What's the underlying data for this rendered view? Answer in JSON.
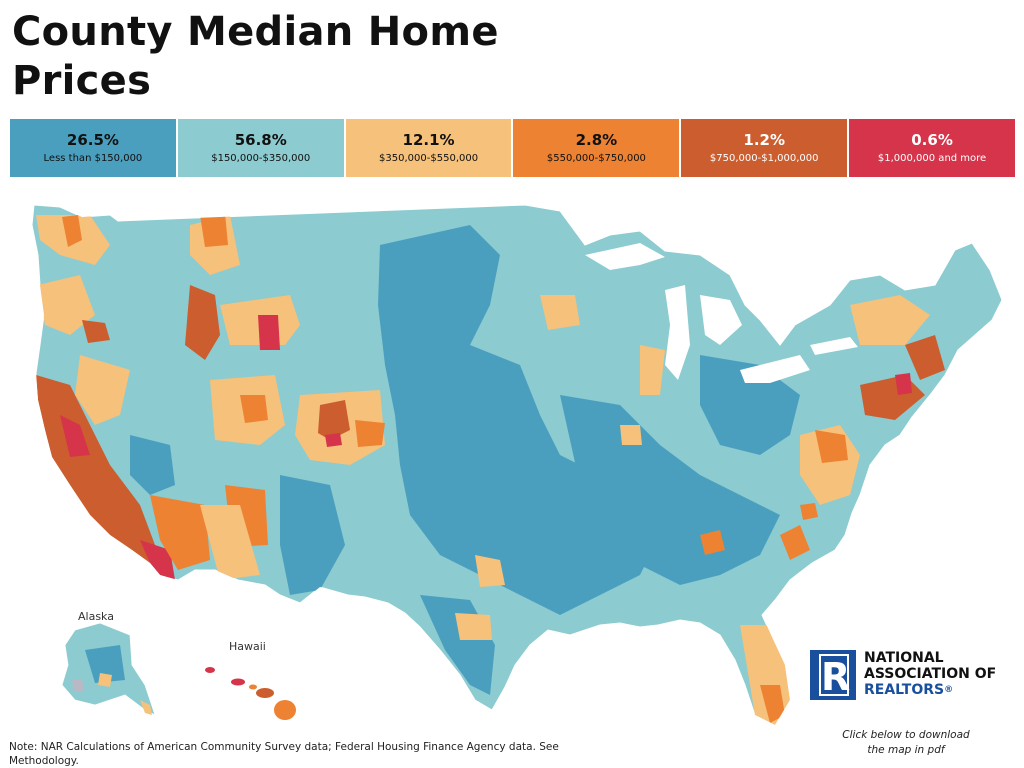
{
  "title": "County Median Home Prices",
  "legend": [
    {
      "pct": "26.5%",
      "range": "Less than $150,000",
      "color": "#4a9fbf",
      "text_style": "dark"
    },
    {
      "pct": "56.8%",
      "range": "$150,000-$350,000",
      "color": "#8ccbd0",
      "text_style": "dark"
    },
    {
      "pct": "12.1%",
      "range": "$350,000-$550,000",
      "color": "#f6c17a",
      "text_style": "dark"
    },
    {
      "pct": "2.8%",
      "range": "$550,000-$750,000",
      "color": "#ee8233",
      "text_style": "dark"
    },
    {
      "pct": "1.2%",
      "range": "$750,000-$1,000,000",
      "color": "#cc5d2e",
      "text_style": "light"
    },
    {
      "pct": "0.6%",
      "range": "$1,000,000 and more",
      "color": "#d5344a",
      "text_style": "light"
    }
  ],
  "insets": {
    "alaska": "Alaska",
    "hawaii": "Hawaii"
  },
  "logo": {
    "line1": "NATIONAL",
    "line2": "ASSOCIATION OF",
    "line3": "REALTORS",
    "reg": "®"
  },
  "download_text": "Click below to download the map in pdf",
  "note_text": "Note: NAR Calculations of American Community Survey data; Federal Housing Finance Agency data. See Methodology."
}
